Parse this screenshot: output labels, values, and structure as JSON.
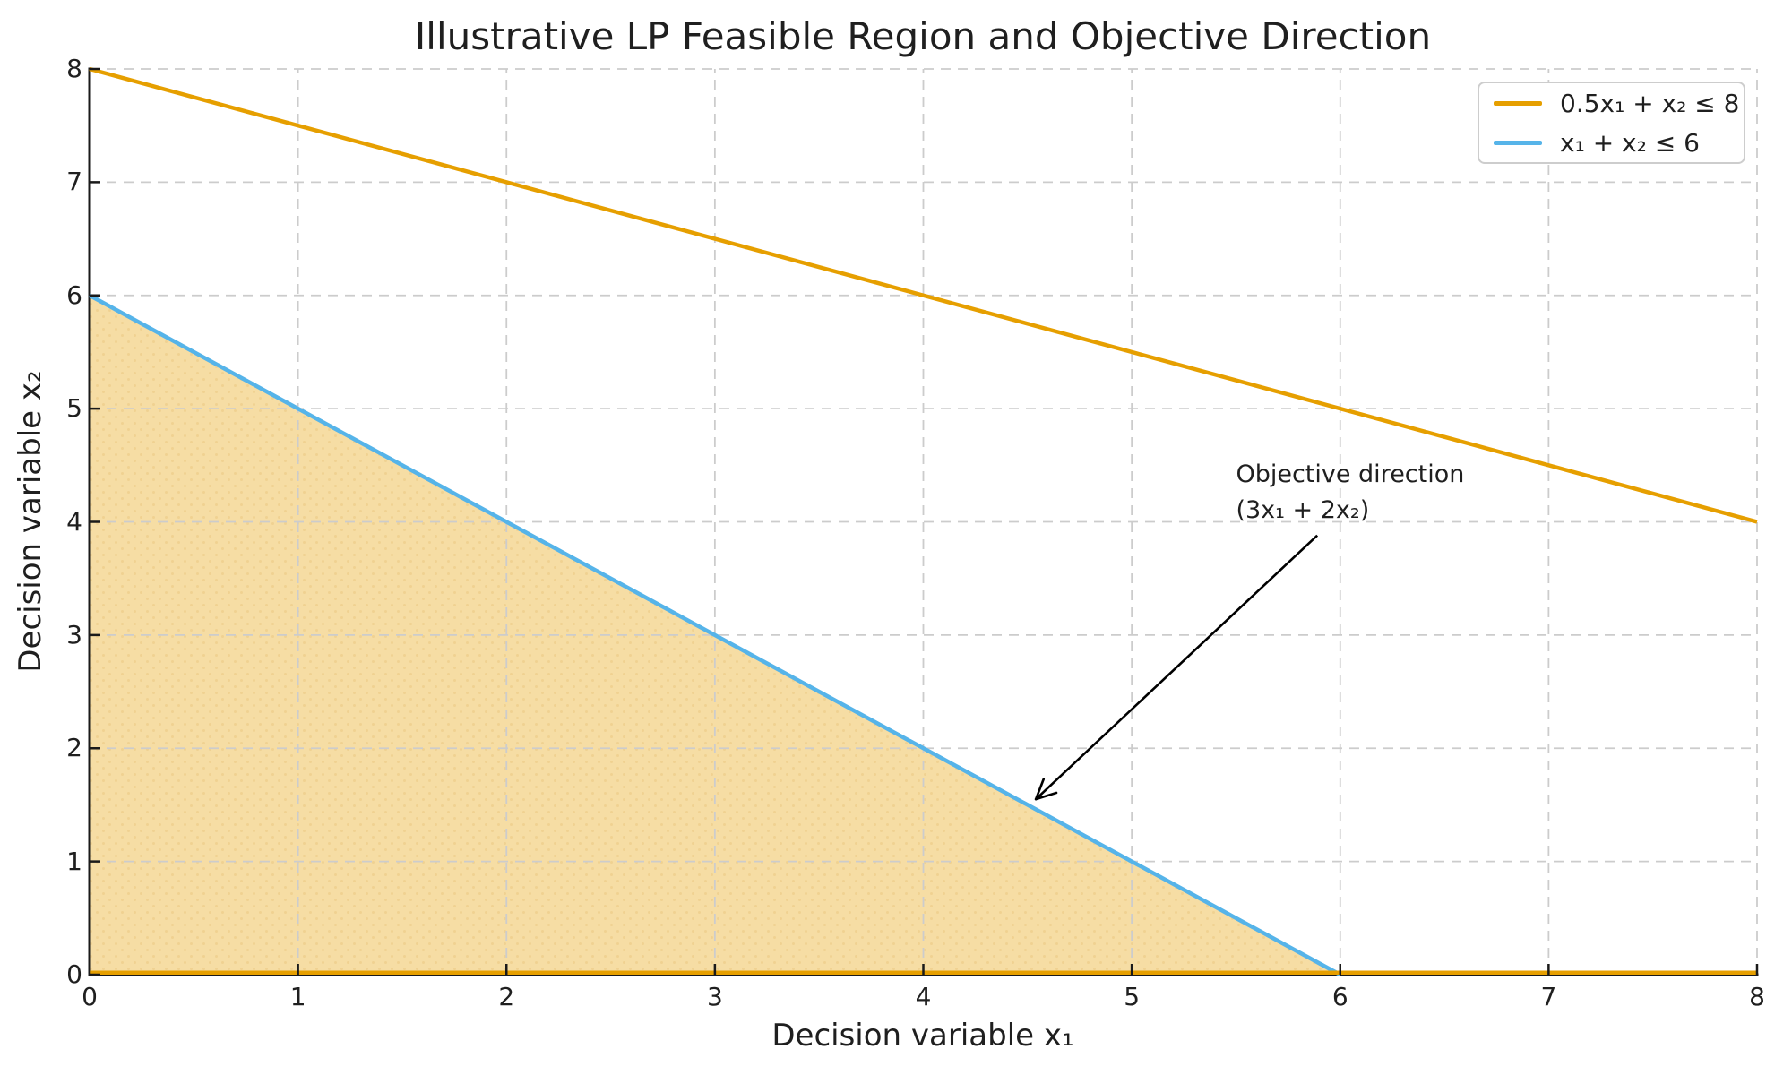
{
  "figure": {
    "background": "#ffffff",
    "text_color": "#1f1f1f",
    "spine_color": "#1a1a1a",
    "grid_color": "#cccccc"
  },
  "chart_data": {
    "type": "line",
    "title": "Illustrative LP Feasible Region and Objective Direction",
    "xlabel": "Decision variable x₁",
    "ylabel": "Decision variable x₂",
    "xlim": [
      0,
      8
    ],
    "ylim": [
      0,
      8
    ],
    "xticks": [
      0,
      1,
      2,
      3,
      4,
      5,
      6,
      7,
      8
    ],
    "yticks": [
      0,
      1,
      2,
      3,
      4,
      5,
      6,
      7,
      8
    ],
    "grid": true,
    "grid_style": "dashed",
    "legend_position": "upper right",
    "series": [
      {
        "name": "0.5x₁ + x₂ ≤ 8",
        "color": "#E69F00",
        "x": [
          0,
          8
        ],
        "y": [
          8,
          4
        ],
        "in_legend": true
      },
      {
        "name": "x₁ + x₂ ≤ 6",
        "color": "#56B4E9",
        "x": [
          0,
          6
        ],
        "y": [
          6,
          0
        ],
        "in_legend": true
      },
      {
        "name": "",
        "color": "#E69F00",
        "x": [
          0,
          8
        ],
        "y": [
          0,
          0
        ],
        "in_legend": false
      }
    ],
    "feasible_region": {
      "vertices": [
        [
          0,
          0
        ],
        [
          0,
          6
        ],
        [
          6,
          0
        ]
      ],
      "fill_color": "#F6DDA4"
    },
    "annotation": {
      "lines": [
        "Objective direction",
        "(3x₁ + 2x₂)"
      ],
      "text_pos": [
        5.5,
        4.57
      ],
      "arrow_start": [
        5.89,
        3.88
      ],
      "arrow_tip": [
        4.54,
        1.55
      ],
      "arrow_color": "#000000"
    }
  }
}
